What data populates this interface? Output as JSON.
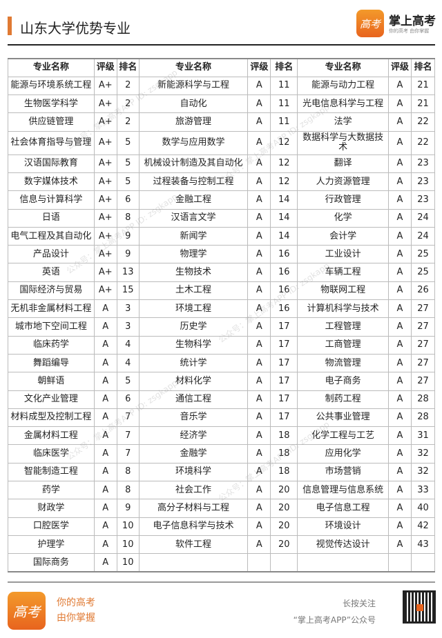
{
  "header": {
    "title": "山东大学优势专业",
    "logo_text": "高考",
    "brand": "掌上高考",
    "slogan": "你的高考 由你掌握",
    "accent": "#e07a33"
  },
  "table": {
    "columns": [
      "专业名称",
      "评级",
      "排名",
      "专业名称",
      "评级",
      "排名",
      "专业名称",
      "评级",
      "排名"
    ],
    "rows": [
      [
        "能源与环境系统工程",
        "A+",
        "2",
        "新能源科学与工程",
        "A",
        "11",
        "能源与动力工程",
        "A",
        "21"
      ],
      [
        "生物医学科学",
        "A+",
        "2",
        "自动化",
        "A",
        "11",
        "光电信息科学与工程",
        "A",
        "21"
      ],
      [
        "供应链管理",
        "A+",
        "2",
        "旅游管理",
        "A",
        "11",
        "法学",
        "A",
        "22"
      ],
      [
        "社会体育指导与管理",
        "A+",
        "5",
        "数学与应用数学",
        "A",
        "12",
        "数据科学与大数据技术",
        "A",
        "22"
      ],
      [
        "汉语国际教育",
        "A+",
        "5",
        "机械设计制造及其自动化",
        "A",
        "12",
        "翻译",
        "A",
        "23"
      ],
      [
        "数字媒体技术",
        "A+",
        "5",
        "过程装备与控制工程",
        "A",
        "12",
        "人力资源管理",
        "A",
        "23"
      ],
      [
        "信息与计算科学",
        "A+",
        "6",
        "金融工程",
        "A",
        "14",
        "行政管理",
        "A",
        "23"
      ],
      [
        "日语",
        "A+",
        "8",
        "汉语言文学",
        "A",
        "14",
        "化学",
        "A",
        "24"
      ],
      [
        "电气工程及其自动化",
        "A+",
        "9",
        "新闻学",
        "A",
        "14",
        "会计学",
        "A",
        "24"
      ],
      [
        "产品设计",
        "A+",
        "9",
        "物理学",
        "A",
        "16",
        "工业设计",
        "A",
        "25"
      ],
      [
        "英语",
        "A+",
        "13",
        "生物技术",
        "A",
        "16",
        "车辆工程",
        "A",
        "25"
      ],
      [
        "国际经济与贸易",
        "A+",
        "15",
        "土木工程",
        "A",
        "16",
        "物联网工程",
        "A",
        "26"
      ],
      [
        "无机非金属材料工程",
        "A",
        "3",
        "环境工程",
        "A",
        "16",
        "计算机科学与技术",
        "A",
        "27"
      ],
      [
        "城市地下空间工程",
        "A",
        "3",
        "历史学",
        "A",
        "17",
        "工程管理",
        "A",
        "27"
      ],
      [
        "临床药学",
        "A",
        "4",
        "生物科学",
        "A",
        "17",
        "工商管理",
        "A",
        "27"
      ],
      [
        "舞蹈编导",
        "A",
        "4",
        "统计学",
        "A",
        "17",
        "物流管理",
        "A",
        "27"
      ],
      [
        "朝鲜语",
        "A",
        "5",
        "材料化学",
        "A",
        "17",
        "电子商务",
        "A",
        "27"
      ],
      [
        "文化产业管理",
        "A",
        "6",
        "通信工程",
        "A",
        "17",
        "制药工程",
        "A",
        "28"
      ],
      [
        "材料成型及控制工程",
        "A",
        "7",
        "音乐学",
        "A",
        "17",
        "公共事业管理",
        "A",
        "28"
      ],
      [
        "金属材料工程",
        "A",
        "7",
        "经济学",
        "A",
        "18",
        "化学工程与工艺",
        "A",
        "31"
      ],
      [
        "临床医学",
        "A",
        "7",
        "金融学",
        "A",
        "18",
        "应用化学",
        "A",
        "32"
      ],
      [
        "智能制造工程",
        "A",
        "8",
        "环境科学",
        "A",
        "18",
        "市场营销",
        "A",
        "32"
      ],
      [
        "药学",
        "A",
        "8",
        "社会工作",
        "A",
        "20",
        "信息管理与信息系统",
        "A",
        "33"
      ],
      [
        "财政学",
        "A",
        "9",
        "高分子材料与工程",
        "A",
        "20",
        "电子信息工程",
        "A",
        "40"
      ],
      [
        "口腔医学",
        "A",
        "10",
        "电子信息科学与技术",
        "A",
        "20",
        "环境设计",
        "A",
        "42"
      ],
      [
        "护理学",
        "A",
        "10",
        "软件工程",
        "A",
        "20",
        "视觉传达设计",
        "A",
        "43"
      ],
      [
        "国际商务",
        "A",
        "10",
        "",
        "",
        "",
        "",
        "",
        ""
      ]
    ]
  },
  "watermark": "公众号：掌上高考APP ID: zsgkapp",
  "footer": {
    "logo_text": "高考",
    "tagline_1": "你的高考",
    "tagline_2": "由你掌握",
    "follow_1": "长按关注",
    "follow_2": "“掌上高考APP”公众号",
    "qr_icon": "qr-code"
  }
}
